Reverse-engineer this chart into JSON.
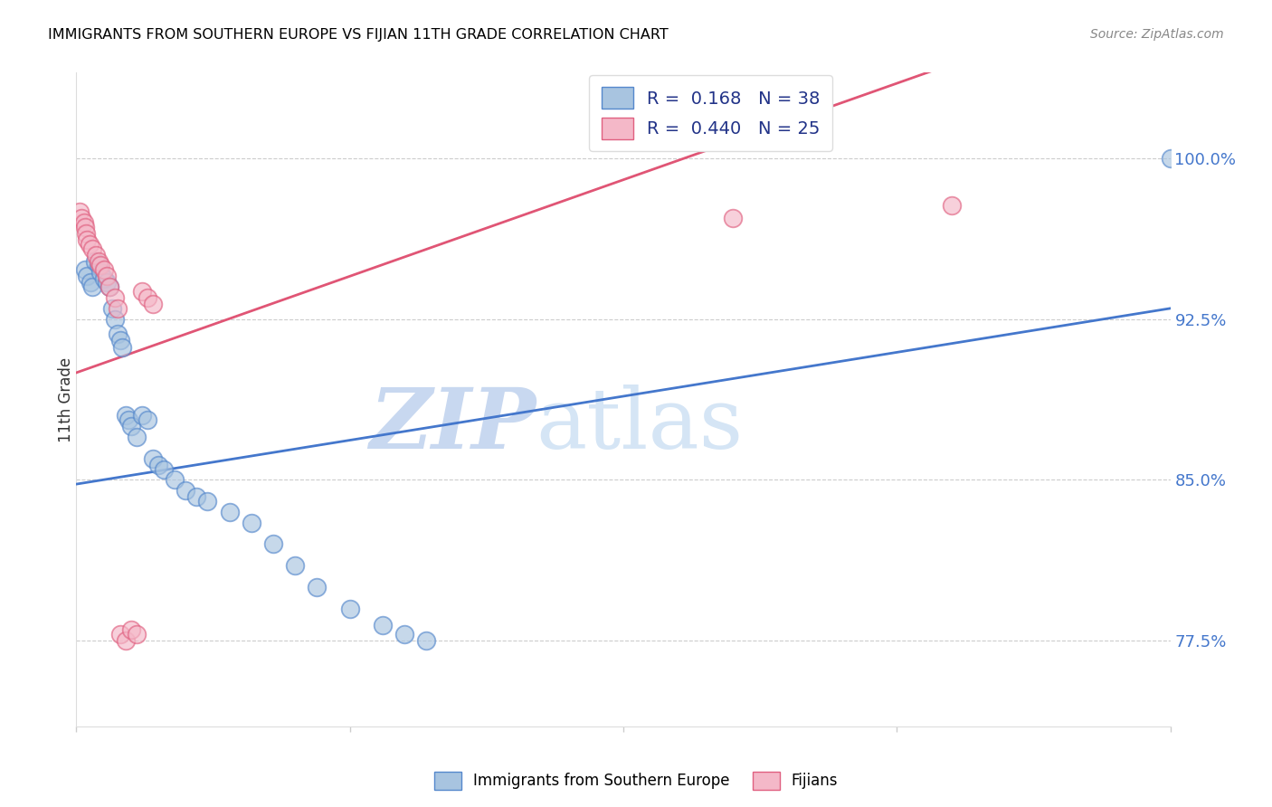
{
  "title": "IMMIGRANTS FROM SOUTHERN EUROPE VS FIJIAN 11TH GRADE CORRELATION CHART",
  "source": "Source: ZipAtlas.com",
  "ylabel": "11th Grade",
  "right_yticks": [
    0.775,
    0.85,
    0.925,
    1.0
  ],
  "right_ytick_labels": [
    "77.5%",
    "85.0%",
    "92.5%",
    "100.0%"
  ],
  "legend_blue_R": "0.168",
  "legend_blue_N": "38",
  "legend_pink_R": "0.440",
  "legend_pink_N": "25",
  "watermark_zip": "ZIP",
  "watermark_atlas": "atlas",
  "blue_color": "#A8C4E0",
  "pink_color": "#F4B8C8",
  "blue_edge_color": "#5588CC",
  "pink_edge_color": "#E06080",
  "blue_line_color": "#4477CC",
  "pink_line_color": "#E05575",
  "blue_line": [
    0.0,
    1.0,
    0.848,
    0.93
  ],
  "pink_line": [
    0.0,
    1.0,
    0.9,
    1.08
  ],
  "xlim": [
    0.0,
    1.0
  ],
  "ylim": [
    0.735,
    1.04
  ],
  "blue_x": [
    0.008,
    0.01,
    0.013,
    0.015,
    0.017,
    0.02,
    0.022,
    0.025,
    0.028,
    0.03,
    0.033,
    0.035,
    0.038,
    0.04,
    0.042,
    0.045,
    0.048,
    0.05,
    0.055,
    0.06,
    0.065,
    0.07,
    0.075,
    0.08,
    0.09,
    0.1,
    0.11,
    0.12,
    0.14,
    0.16,
    0.18,
    0.2,
    0.22,
    0.25,
    0.28,
    0.3,
    0.32,
    1.0
  ],
  "blue_y": [
    0.948,
    0.945,
    0.942,
    0.94,
    0.952,
    0.95,
    0.947,
    0.944,
    0.942,
    0.94,
    0.93,
    0.925,
    0.918,
    0.915,
    0.912,
    0.88,
    0.878,
    0.875,
    0.87,
    0.88,
    0.878,
    0.86,
    0.857,
    0.855,
    0.85,
    0.845,
    0.842,
    0.84,
    0.835,
    0.83,
    0.82,
    0.81,
    0.8,
    0.79,
    0.782,
    0.778,
    0.775,
    1.0
  ],
  "pink_x": [
    0.003,
    0.005,
    0.007,
    0.008,
    0.009,
    0.01,
    0.012,
    0.015,
    0.018,
    0.02,
    0.022,
    0.025,
    0.028,
    0.03,
    0.035,
    0.038,
    0.04,
    0.045,
    0.05,
    0.055,
    0.06,
    0.065,
    0.07,
    0.6,
    0.8
  ],
  "pink_y": [
    0.975,
    0.972,
    0.97,
    0.968,
    0.965,
    0.962,
    0.96,
    0.958,
    0.955,
    0.952,
    0.95,
    0.948,
    0.945,
    0.94,
    0.935,
    0.93,
    0.778,
    0.775,
    0.78,
    0.778,
    0.938,
    0.935,
    0.932,
    0.972,
    0.978
  ]
}
